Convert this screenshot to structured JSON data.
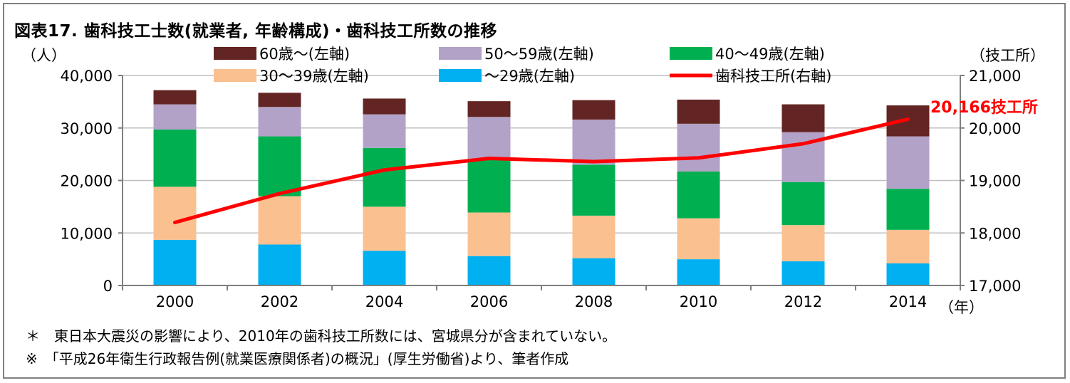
{
  "figure": {
    "title": "図表17. 歯科技工士数(就業者, 年齢構成)・歯科技工所数の推移",
    "left_unit": "（人）",
    "right_unit": "（技工所）",
    "x_unit": "（年）",
    "notes": [
      "＊　東日本大震災の影響により、2010年の歯科技工所数には、宮城県分が含まれていない。",
      "※　「平成26年衛生行政報告例(就業医療関係者)の概況」(厚生労働省)より、筆者作成"
    ],
    "annotation": "20,166技工所"
  },
  "chart_data": {
    "type": "bar",
    "stacked": true,
    "categories": [
      "2000",
      "2002",
      "2004",
      "2006",
      "2008",
      "2010",
      "2012",
      "2014"
    ],
    "series": [
      {
        "name": "～29歳(左軸)",
        "color": "#00b0f0",
        "axis": "left",
        "values": [
          8700,
          7800,
          6600,
          5600,
          5200,
          5000,
          4600,
          4200
        ]
      },
      {
        "name": "30～39歳(左軸)",
        "color": "#fac090",
        "axis": "left",
        "values": [
          10100,
          9200,
          8400,
          8300,
          8100,
          7800,
          6900,
          6400
        ]
      },
      {
        "name": "40～49歳(左軸)",
        "color": "#00b050",
        "axis": "left",
        "values": [
          10900,
          11400,
          11200,
          10000,
          9700,
          8900,
          8200,
          7800
        ]
      },
      {
        "name": "50～59歳(左軸)",
        "color": "#b3a2c7",
        "axis": "left",
        "values": [
          4800,
          5600,
          6400,
          8200,
          8600,
          9100,
          9500,
          10000
        ]
      },
      {
        "name": "60歳～(左軸)",
        "color": "#632523",
        "axis": "left",
        "values": [
          2700,
          2700,
          3000,
          3000,
          3700,
          4600,
          5300,
          5900
        ]
      },
      {
        "name": "歯科技工所(右軸)",
        "color": "#ff0000",
        "axis": "right",
        "type": "line",
        "values": [
          18200,
          18750,
          19200,
          19420,
          19360,
          19430,
          19700,
          20166
        ]
      }
    ],
    "legend_order": [
      "60歳～(左軸)",
      "50～59歳(左軸)",
      "40～49歳(左軸)",
      "30～39歳(左軸)",
      "～29歳(左軸)",
      "歯科技工所(右軸)"
    ],
    "left_axis": {
      "min": 0,
      "max": 40000,
      "step": 10000,
      "tick_labels": [
        "0",
        "10,000",
        "20,000",
        "30,000",
        "40,000"
      ]
    },
    "right_axis": {
      "min": 17000,
      "max": 21000,
      "step": 1000,
      "tick_labels": [
        "17,000",
        "18,000",
        "19,000",
        "20,000",
        "21,000"
      ]
    },
    "grid": true,
    "legend_position": "top"
  }
}
